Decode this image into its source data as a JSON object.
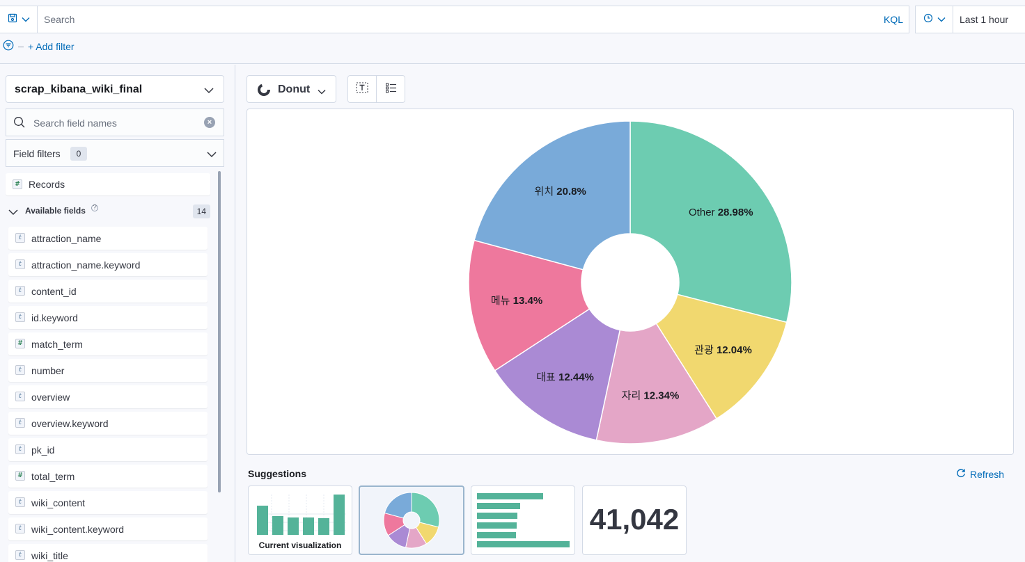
{
  "query": {
    "search_placeholder": "Search",
    "language": "KQL",
    "time_range": "Last 1 hour",
    "add_filter": "+ Add filter"
  },
  "sidebar": {
    "index_pattern": "scrap_kibana_wiki_final",
    "search_placeholder": "Search field names",
    "field_filters_label": "Field filters",
    "field_filters_count": "0",
    "records_label": "Records",
    "available_label": "Available fields",
    "available_count": "14",
    "fields": [
      {
        "name": "attraction_name",
        "type": "t"
      },
      {
        "name": "attraction_name.keyword",
        "type": "t"
      },
      {
        "name": "content_id",
        "type": "t"
      },
      {
        "name": "id.keyword",
        "type": "t"
      },
      {
        "name": "match_term",
        "type": "#"
      },
      {
        "name": "number",
        "type": "t"
      },
      {
        "name": "overview",
        "type": "t"
      },
      {
        "name": "overview.keyword",
        "type": "t"
      },
      {
        "name": "pk_id",
        "type": "t"
      },
      {
        "name": "total_term",
        "type": "#"
      },
      {
        "name": "wiki_content",
        "type": "t"
      },
      {
        "name": "wiki_content.keyword",
        "type": "t"
      },
      {
        "name": "wiki_title",
        "type": "t"
      }
    ]
  },
  "toolbar": {
    "chart_type": "Donut"
  },
  "suggestions": {
    "title": "Suggestions",
    "refresh": "Refresh",
    "current_caption": "Current visualization",
    "metric_value": "41,042"
  },
  "chart_data": {
    "type": "pie",
    "variant": "donut",
    "slices": [
      {
        "label": "Other",
        "value": 28.98,
        "pct": "28.98%",
        "color": "#6dccb1"
      },
      {
        "label": "관광",
        "value": 12.04,
        "pct": "12.04%",
        "color": "#f1d86f"
      },
      {
        "label": "자리",
        "value": 12.34,
        "pct": "12.34%",
        "color": "#e4a6c7"
      },
      {
        "label": "대표",
        "value": 12.44,
        "pct": "12.44%",
        "color": "#aa8ad4"
      },
      {
        "label": "메뉴",
        "value": 13.4,
        "pct": "13.4%",
        "color": "#ee789d"
      },
      {
        "label": "위치",
        "value": 20.8,
        "pct": "20.8%",
        "color": "#79aad9"
      }
    ]
  }
}
